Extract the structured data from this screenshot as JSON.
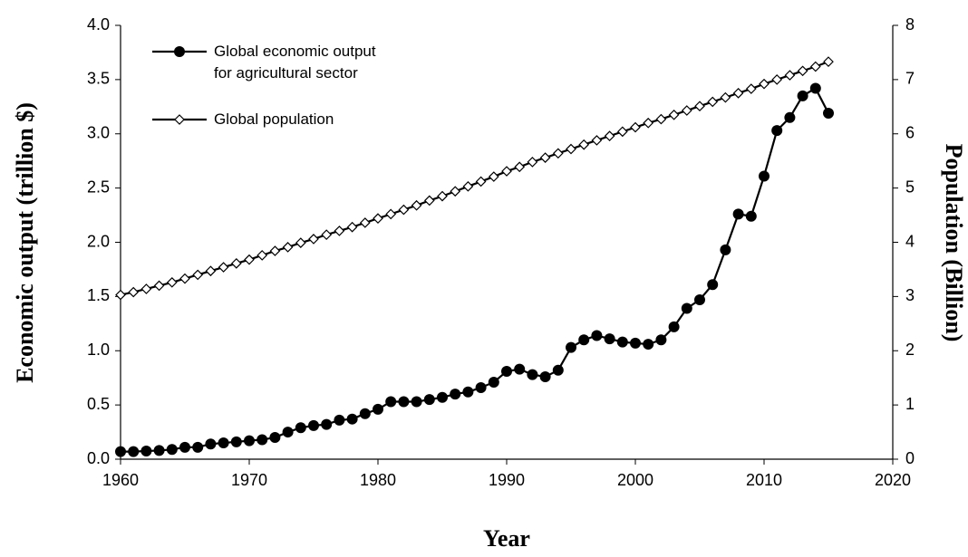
{
  "chart_data": {
    "type": "line",
    "x_label": "Year",
    "y_label": "Economic output (trillion $)",
    "y2_label": "Population (Billion)",
    "x": [
      1960,
      1961,
      1962,
      1963,
      1964,
      1965,
      1966,
      1967,
      1968,
      1969,
      1970,
      1971,
      1972,
      1973,
      1974,
      1975,
      1976,
      1977,
      1978,
      1979,
      1980,
      1981,
      1982,
      1983,
      1984,
      1985,
      1986,
      1987,
      1988,
      1989,
      1990,
      1991,
      1992,
      1993,
      1994,
      1995,
      1996,
      1997,
      1998,
      1999,
      2000,
      2001,
      2002,
      2003,
      2004,
      2005,
      2006,
      2007,
      2008,
      2009,
      2010,
      2011,
      2012,
      2013,
      2014,
      2015
    ],
    "series": [
      {
        "name": "Global economic output for agricultural sector",
        "color": "#000000",
        "marker": "circle",
        "values": [
          0.07,
          0.07,
          0.075,
          0.08,
          0.09,
          0.11,
          0.11,
          0.14,
          0.15,
          0.16,
          0.17,
          0.18,
          0.2,
          0.25,
          0.29,
          0.31,
          0.32,
          0.36,
          0.37,
          0.42,
          0.46,
          0.53,
          0.53,
          0.53,
          0.55,
          0.57,
          0.6,
          0.62,
          0.66,
          0.71,
          0.81,
          0.83,
          0.78,
          0.76,
          0.82,
          1.03,
          1.1,
          1.14,
          1.11,
          1.08,
          1.07,
          1.06,
          1.1,
          1.22,
          1.39,
          1.47,
          1.61,
          1.93,
          2.26,
          2.24,
          2.61,
          3.03,
          3.15,
          3.35,
          3.42,
          3.19
        ]
      },
      {
        "name": "Global population",
        "color": "#000000",
        "marker": "diamond",
        "axis": "y2",
        "values": [
          3.03,
          3.08,
          3.14,
          3.2,
          3.26,
          3.33,
          3.4,
          3.47,
          3.54,
          3.61,
          3.68,
          3.76,
          3.84,
          3.91,
          3.99,
          4.06,
          4.14,
          4.21,
          4.28,
          4.36,
          4.44,
          4.52,
          4.6,
          4.68,
          4.77,
          4.85,
          4.94,
          5.03,
          5.12,
          5.21,
          5.31,
          5.39,
          5.48,
          5.56,
          5.64,
          5.72,
          5.8,
          5.88,
          5.96,
          6.04,
          6.12,
          6.2,
          6.27,
          6.35,
          6.43,
          6.51,
          6.59,
          6.67,
          6.75,
          6.83,
          6.92,
          7.0,
          7.08,
          7.16,
          7.24,
          7.33
        ]
      }
    ],
    "xlim": [
      1960,
      2020
    ],
    "xticks": [
      1960,
      1970,
      1980,
      1990,
      2000,
      2010,
      2020
    ],
    "ylim": [
      0,
      4
    ],
    "yticks": [
      {
        "value": 0,
        "label": "0.0"
      },
      0.5,
      {
        "value": 1,
        "label": "1.0"
      },
      1.5,
      {
        "value": 2,
        "label": "2.0"
      },
      2.5,
      {
        "value": 3,
        "label": "3.0"
      },
      3.5,
      {
        "value": 4,
        "label": "4.0"
      }
    ],
    "y2lim": [
      0,
      8
    ],
    "y2ticks": [
      0,
      1,
      2,
      3,
      4,
      5,
      6,
      7,
      8
    ],
    "legend": "upper left"
  }
}
